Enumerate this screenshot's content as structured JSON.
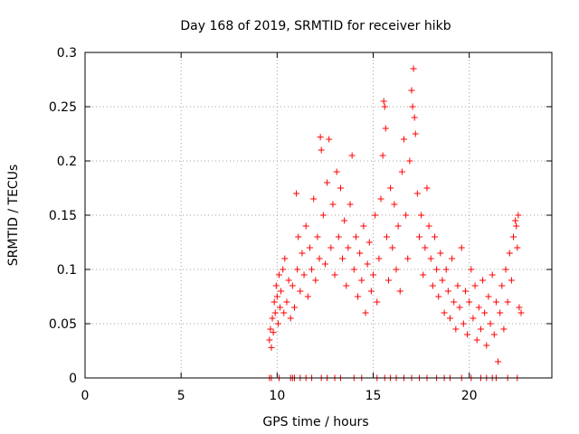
{
  "chart_data": {
    "type": "scatter",
    "title": "Day 168 of 2019, SRMTID for receiver hikb",
    "xlabel": "GPS time / hours",
    "ylabel": "SRMTID / TECUs",
    "xlim": [
      0,
      24.3
    ],
    "ylim": [
      0,
      0.3
    ],
    "x_ticks": [
      0,
      5,
      10,
      15,
      20
    ],
    "y_ticks": [
      0,
      0.05,
      0.1,
      0.15,
      0.2,
      0.25,
      0.3
    ],
    "x_tick_labels": [
      "0",
      "5",
      "10",
      "15",
      "20"
    ],
    "y_tick_labels": [
      "0",
      "0.05",
      "0.1",
      "0.15",
      "0.2",
      "0.25",
      "0.3"
    ],
    "grid": true,
    "legend": "none",
    "marker": "+",
    "color": "#ff0000",
    "series": [
      {
        "name": "SRMTID",
        "points": [
          [
            9.6,
            0
          ],
          [
            9.7,
            0
          ],
          [
            10.1,
            0
          ],
          [
            10.7,
            0
          ],
          [
            10.8,
            0
          ],
          [
            10.9,
            0
          ],
          [
            11.2,
            0
          ],
          [
            11.5,
            0
          ],
          [
            11.8,
            0
          ],
          [
            12.3,
            0
          ],
          [
            12.6,
            0
          ],
          [
            13.0,
            0
          ],
          [
            13.3,
            0
          ],
          [
            14.0,
            0
          ],
          [
            14.4,
            0
          ],
          [
            15.2,
            0
          ],
          [
            15.6,
            0
          ],
          [
            15.9,
            0
          ],
          [
            16.2,
            0
          ],
          [
            16.6,
            0
          ],
          [
            17.0,
            0
          ],
          [
            17.4,
            0
          ],
          [
            17.8,
            0
          ],
          [
            18.3,
            0
          ],
          [
            18.7,
            0
          ],
          [
            19.0,
            0
          ],
          [
            19.6,
            0
          ],
          [
            20.1,
            0
          ],
          [
            20.6,
            0
          ],
          [
            20.9,
            0
          ],
          [
            21.2,
            0
          ],
          [
            21.4,
            0
          ],
          [
            22.0,
            0
          ],
          [
            22.5,
            0
          ],
          [
            9.6,
            0.035
          ],
          [
            9.65,
            0.045
          ],
          [
            9.7,
            0.028
          ],
          [
            9.75,
            0.055
          ],
          [
            9.8,
            0.042
          ],
          [
            9.85,
            0.07
          ],
          [
            9.9,
            0.06
          ],
          [
            9.95,
            0.085
          ],
          [
            10.0,
            0.075
          ],
          [
            10.05,
            0.05
          ],
          [
            10.1,
            0.095
          ],
          [
            10.15,
            0.065
          ],
          [
            10.2,
            0.08
          ],
          [
            10.3,
            0.1
          ],
          [
            10.35,
            0.06
          ],
          [
            10.4,
            0.11
          ],
          [
            10.5,
            0.07
          ],
          [
            10.6,
            0.09
          ],
          [
            10.7,
            0.055
          ],
          [
            10.8,
            0.085
          ],
          [
            10.9,
            0.065
          ],
          [
            11.0,
            0.17
          ],
          [
            11.05,
            0.1
          ],
          [
            11.1,
            0.13
          ],
          [
            11.2,
            0.08
          ],
          [
            11.3,
            0.115
          ],
          [
            11.4,
            0.095
          ],
          [
            11.5,
            0.14
          ],
          [
            11.6,
            0.075
          ],
          [
            11.7,
            0.12
          ],
          [
            11.8,
            0.1
          ],
          [
            11.9,
            0.165
          ],
          [
            12.0,
            0.09
          ],
          [
            12.1,
            0.13
          ],
          [
            12.2,
            0.11
          ],
          [
            12.25,
            0.222
          ],
          [
            12.3,
            0.21
          ],
          [
            12.4,
            0.15
          ],
          [
            12.5,
            0.105
          ],
          [
            12.6,
            0.18
          ],
          [
            12.7,
            0.22
          ],
          [
            12.8,
            0.12
          ],
          [
            12.9,
            0.16
          ],
          [
            13.0,
            0.095
          ],
          [
            13.1,
            0.19
          ],
          [
            13.2,
            0.13
          ],
          [
            13.3,
            0.175
          ],
          [
            13.4,
            0.11
          ],
          [
            13.5,
            0.145
          ],
          [
            13.6,
            0.085
          ],
          [
            13.7,
            0.12
          ],
          [
            13.8,
            0.16
          ],
          [
            13.9,
            0.205
          ],
          [
            14.0,
            0.1
          ],
          [
            14.1,
            0.13
          ],
          [
            14.2,
            0.075
          ],
          [
            14.3,
            0.115
          ],
          [
            14.4,
            0.09
          ],
          [
            14.5,
            0.14
          ],
          [
            14.6,
            0.06
          ],
          [
            14.7,
            0.105
          ],
          [
            14.8,
            0.125
          ],
          [
            14.9,
            0.08
          ],
          [
            15.0,
            0.095
          ],
          [
            15.1,
            0.15
          ],
          [
            15.2,
            0.07
          ],
          [
            15.3,
            0.11
          ],
          [
            15.4,
            0.165
          ],
          [
            15.5,
            0.205
          ],
          [
            15.55,
            0.255
          ],
          [
            15.6,
            0.25
          ],
          [
            15.65,
            0.23
          ],
          [
            15.7,
            0.13
          ],
          [
            15.8,
            0.09
          ],
          [
            15.9,
            0.175
          ],
          [
            16.0,
            0.12
          ],
          [
            16.1,
            0.16
          ],
          [
            16.2,
            0.1
          ],
          [
            16.3,
            0.14
          ],
          [
            16.4,
            0.08
          ],
          [
            16.5,
            0.19
          ],
          [
            16.6,
            0.22
          ],
          [
            16.7,
            0.15
          ],
          [
            16.8,
            0.11
          ],
          [
            16.9,
            0.2
          ],
          [
            17.0,
            0.265
          ],
          [
            17.05,
            0.25
          ],
          [
            17.1,
            0.285
          ],
          [
            17.15,
            0.24
          ],
          [
            17.2,
            0.225
          ],
          [
            17.3,
            0.17
          ],
          [
            17.4,
            0.13
          ],
          [
            17.5,
            0.15
          ],
          [
            17.6,
            0.095
          ],
          [
            17.7,
            0.12
          ],
          [
            17.8,
            0.175
          ],
          [
            17.9,
            0.14
          ],
          [
            18.0,
            0.11
          ],
          [
            18.1,
            0.085
          ],
          [
            18.2,
            0.13
          ],
          [
            18.3,
            0.1
          ],
          [
            18.4,
            0.075
          ],
          [
            18.5,
            0.115
          ],
          [
            18.6,
            0.09
          ],
          [
            18.7,
            0.06
          ],
          [
            18.8,
            0.1
          ],
          [
            18.9,
            0.08
          ],
          [
            19.0,
            0.055
          ],
          [
            19.1,
            0.11
          ],
          [
            19.2,
            0.07
          ],
          [
            19.3,
            0.045
          ],
          [
            19.4,
            0.085
          ],
          [
            19.5,
            0.065
          ],
          [
            19.6,
            0.12
          ],
          [
            19.7,
            0.05
          ],
          [
            19.8,
            0.08
          ],
          [
            19.9,
            0.04
          ],
          [
            20.0,
            0.07
          ],
          [
            20.1,
            0.1
          ],
          [
            20.2,
            0.055
          ],
          [
            20.3,
            0.085
          ],
          [
            20.4,
            0.035
          ],
          [
            20.5,
            0.065
          ],
          [
            20.6,
            0.045
          ],
          [
            20.7,
            0.09
          ],
          [
            20.8,
            0.06
          ],
          [
            20.9,
            0.03
          ],
          [
            21.0,
            0.075
          ],
          [
            21.1,
            0.05
          ],
          [
            21.2,
            0.095
          ],
          [
            21.3,
            0.04
          ],
          [
            21.4,
            0.07
          ],
          [
            21.5,
            0.015
          ],
          [
            21.6,
            0.06
          ],
          [
            21.7,
            0.085
          ],
          [
            21.8,
            0.045
          ],
          [
            21.9,
            0.1
          ],
          [
            22.0,
            0.07
          ],
          [
            22.1,
            0.115
          ],
          [
            22.2,
            0.09
          ],
          [
            22.3,
            0.13
          ],
          [
            22.4,
            0.145
          ],
          [
            22.45,
            0.14
          ],
          [
            22.5,
            0.12
          ],
          [
            22.55,
            0.15
          ],
          [
            22.6,
            0.065
          ],
          [
            22.7,
            0.06
          ]
        ]
      }
    ]
  }
}
